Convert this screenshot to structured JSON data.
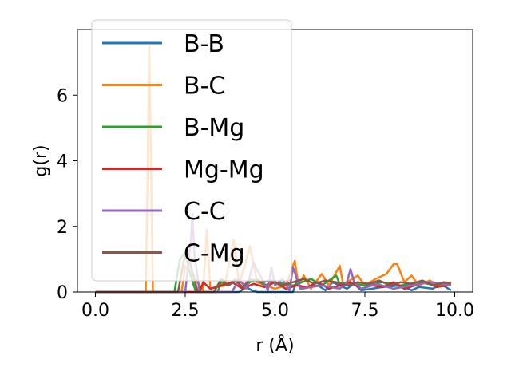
{
  "chart_data": {
    "type": "line",
    "xlabel": "r (Å)",
    "ylabel": "g(r)",
    "xlim": [
      -0.5,
      10.5
    ],
    "ylim": [
      0,
      8.0
    ],
    "xticks": [
      0.0,
      2.5,
      5.0,
      7.5,
      10.0
    ],
    "xtick_labels": [
      "0.0",
      "2.5",
      "5.0",
      "7.5",
      "10.0"
    ],
    "yticks": [
      0,
      2,
      4,
      6
    ],
    "ytick_labels": [
      "0",
      "2",
      "4",
      "6"
    ],
    "grid": false,
    "legend_position": "top-left",
    "series": [
      {
        "name": "B-B",
        "color": "#1f77b4",
        "x": [
          0.0,
          2.0,
          4.0,
          4.2,
          4.35,
          4.5,
          5.5,
          5.6,
          5.75,
          6.2,
          6.4,
          6.6,
          7.0,
          7.2,
          7.4,
          8.0,
          8.5,
          8.8,
          9.0,
          9.4,
          9.6,
          9.9
        ],
        "y": [
          0,
          0,
          0,
          0.15,
          0.05,
          0,
          0,
          0.35,
          0.1,
          0.2,
          0.05,
          0.3,
          0.1,
          0.25,
          0.05,
          0.15,
          0.2,
          0.05,
          0.15,
          0.1,
          0.25,
          0.05
        ]
      },
      {
        "name": "B-C",
        "color": "#ff7f0e",
        "x": [
          0.0,
          1.4,
          1.45,
          1.5,
          1.55,
          1.6,
          2.4,
          2.5,
          3.0,
          3.1,
          3.2,
          3.6,
          3.85,
          4.0,
          4.3,
          4.5,
          5.0,
          5.3,
          5.55,
          5.65,
          5.8,
          6.0,
          6.3,
          6.5,
          6.8,
          6.9,
          7.0,
          7.3,
          7.5,
          7.8,
          8.1,
          8.3,
          8.4,
          8.6,
          8.8,
          9.0,
          9.3,
          9.6,
          9.9
        ],
        "y": [
          0,
          0,
          3.5,
          7.5,
          3.5,
          0,
          0,
          0.8,
          0.05,
          1.9,
          0.1,
          0.2,
          1.6,
          0.2,
          1.4,
          0.3,
          0.1,
          0.2,
          0.95,
          0.2,
          0.5,
          0.1,
          0.55,
          0.2,
          0.8,
          0.2,
          0.3,
          0.5,
          0.2,
          0.4,
          0.55,
          0.85,
          0.85,
          0.3,
          0.5,
          0.2,
          0.35,
          0.2,
          0.3
        ]
      },
      {
        "name": "B-Mg",
        "color": "#2ca02c",
        "x": [
          0.0,
          2.2,
          2.35,
          2.5,
          2.65,
          2.8,
          3.4,
          3.5,
          3.7,
          3.9,
          4.1,
          4.3,
          4.5,
          4.7,
          5.0,
          5.5,
          6.0,
          6.3,
          6.7,
          6.8,
          7.0,
          7.5,
          8.0,
          8.5,
          9.0,
          9.5,
          9.8
        ],
        "y": [
          0,
          0,
          1.0,
          1.2,
          0.5,
          0,
          0,
          0.3,
          0.2,
          0.4,
          0.1,
          0.3,
          0.4,
          0.2,
          0.3,
          0.2,
          0.4,
          0.2,
          0.5,
          0.25,
          0.3,
          0.2,
          0.3,
          0.2,
          0.3,
          0.2,
          0.3
        ]
      },
      {
        "name": "Mg-Mg",
        "color": "#d62728",
        "x": [
          0.0,
          2.9,
          3.0,
          3.2,
          3.5,
          3.8,
          4.1,
          4.4,
          4.7,
          5.0,
          5.3,
          5.6,
          5.9,
          6.2,
          6.5,
          6.8,
          7.1,
          7.4,
          7.7,
          8.0,
          8.3,
          8.6,
          8.9,
          9.2,
          9.5,
          9.8
        ],
        "y": [
          0,
          0,
          0.3,
          0.1,
          0.2,
          0.3,
          0.1,
          0.25,
          0.15,
          0.3,
          0.1,
          0.2,
          0.15,
          0.3,
          0.1,
          0.2,
          0.3,
          0.1,
          0.2,
          0.15,
          0.3,
          0.1,
          0.2,
          0.3,
          0.15,
          0.2
        ]
      },
      {
        "name": "C-C",
        "color": "#9467bd",
        "x": [
          0.0,
          2.5,
          2.65,
          2.7,
          2.75,
          2.9,
          3.8,
          4.0,
          4.2,
          4.4,
          4.8,
          4.9,
          5.0,
          5.2,
          5.4,
          5.5,
          5.7,
          6.3,
          6.8,
          7.0,
          7.1,
          7.2,
          7.4,
          7.8,
          8.3,
          8.8,
          9.3,
          9.9
        ],
        "y": [
          0,
          0,
          1.5,
          2.4,
          1.2,
          0,
          0,
          0.4,
          0.1,
          0.9,
          0.05,
          0.75,
          0.2,
          0.4,
          0.05,
          0.75,
          0.1,
          0.2,
          0.1,
          0.3,
          0.7,
          0.3,
          0.1,
          0.25,
          0.1,
          0.2,
          0.3,
          0.2
        ]
      },
      {
        "name": "C-Mg",
        "color": "#8c564b",
        "x": [
          0.0,
          2.3,
          2.45,
          2.55,
          2.7,
          2.85,
          3.3,
          3.5,
          3.7,
          3.9,
          4.1,
          4.3,
          4.6,
          4.9,
          5.2,
          5.5,
          5.8,
          6.1,
          6.4,
          6.7,
          7.0,
          7.3,
          7.6,
          7.9,
          8.2,
          8.5,
          8.8,
          9.1,
          9.4,
          9.7,
          9.9
        ],
        "y": [
          0,
          0,
          0.9,
          1.3,
          0.6,
          0,
          0,
          0.4,
          0.2,
          0.35,
          0.15,
          0.4,
          0.3,
          0.35,
          0.2,
          0.3,
          0.4,
          0.25,
          0.35,
          0.3,
          0.2,
          0.3,
          0.25,
          0.35,
          0.2,
          0.3,
          0.25,
          0.35,
          0.2,
          0.3,
          0.25
        ]
      }
    ]
  }
}
